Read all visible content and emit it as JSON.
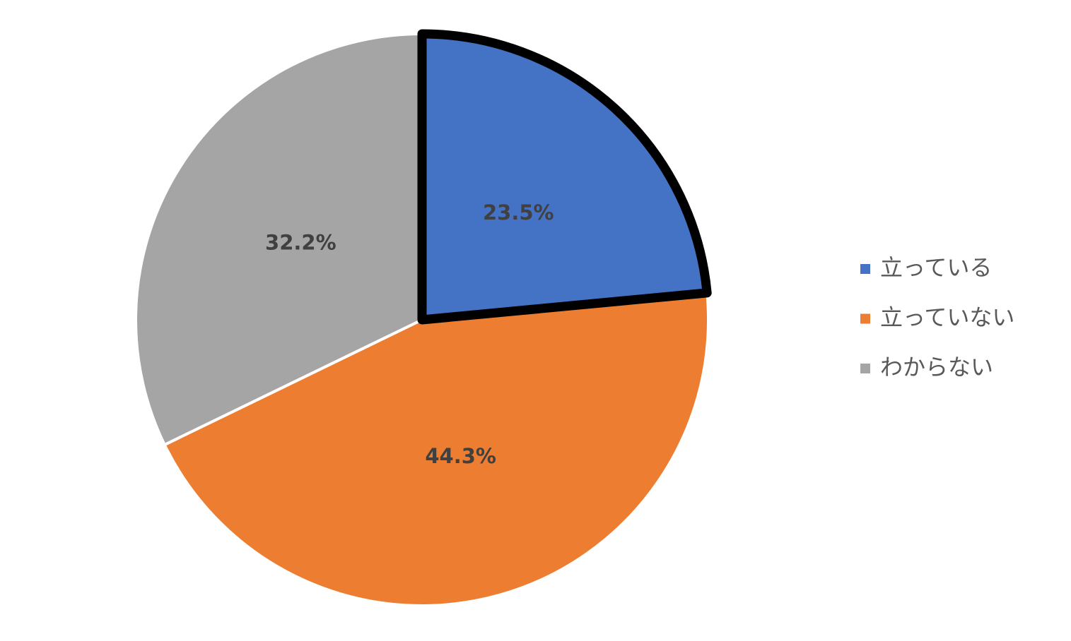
{
  "chart_data": {
    "type": "pie",
    "categories": [
      "立っている",
      "立っていない",
      "わからない"
    ],
    "values": [
      23.5,
      44.3,
      32.2
    ],
    "value_labels": [
      "23.5%",
      "44.3%",
      "32.2%"
    ],
    "colors": [
      "#4472c4",
      "#ed7d31",
      "#a5a5a5"
    ],
    "edge_colors": [
      "#000000",
      "#ffffff",
      "#ffffff"
    ],
    "legend": "right"
  }
}
